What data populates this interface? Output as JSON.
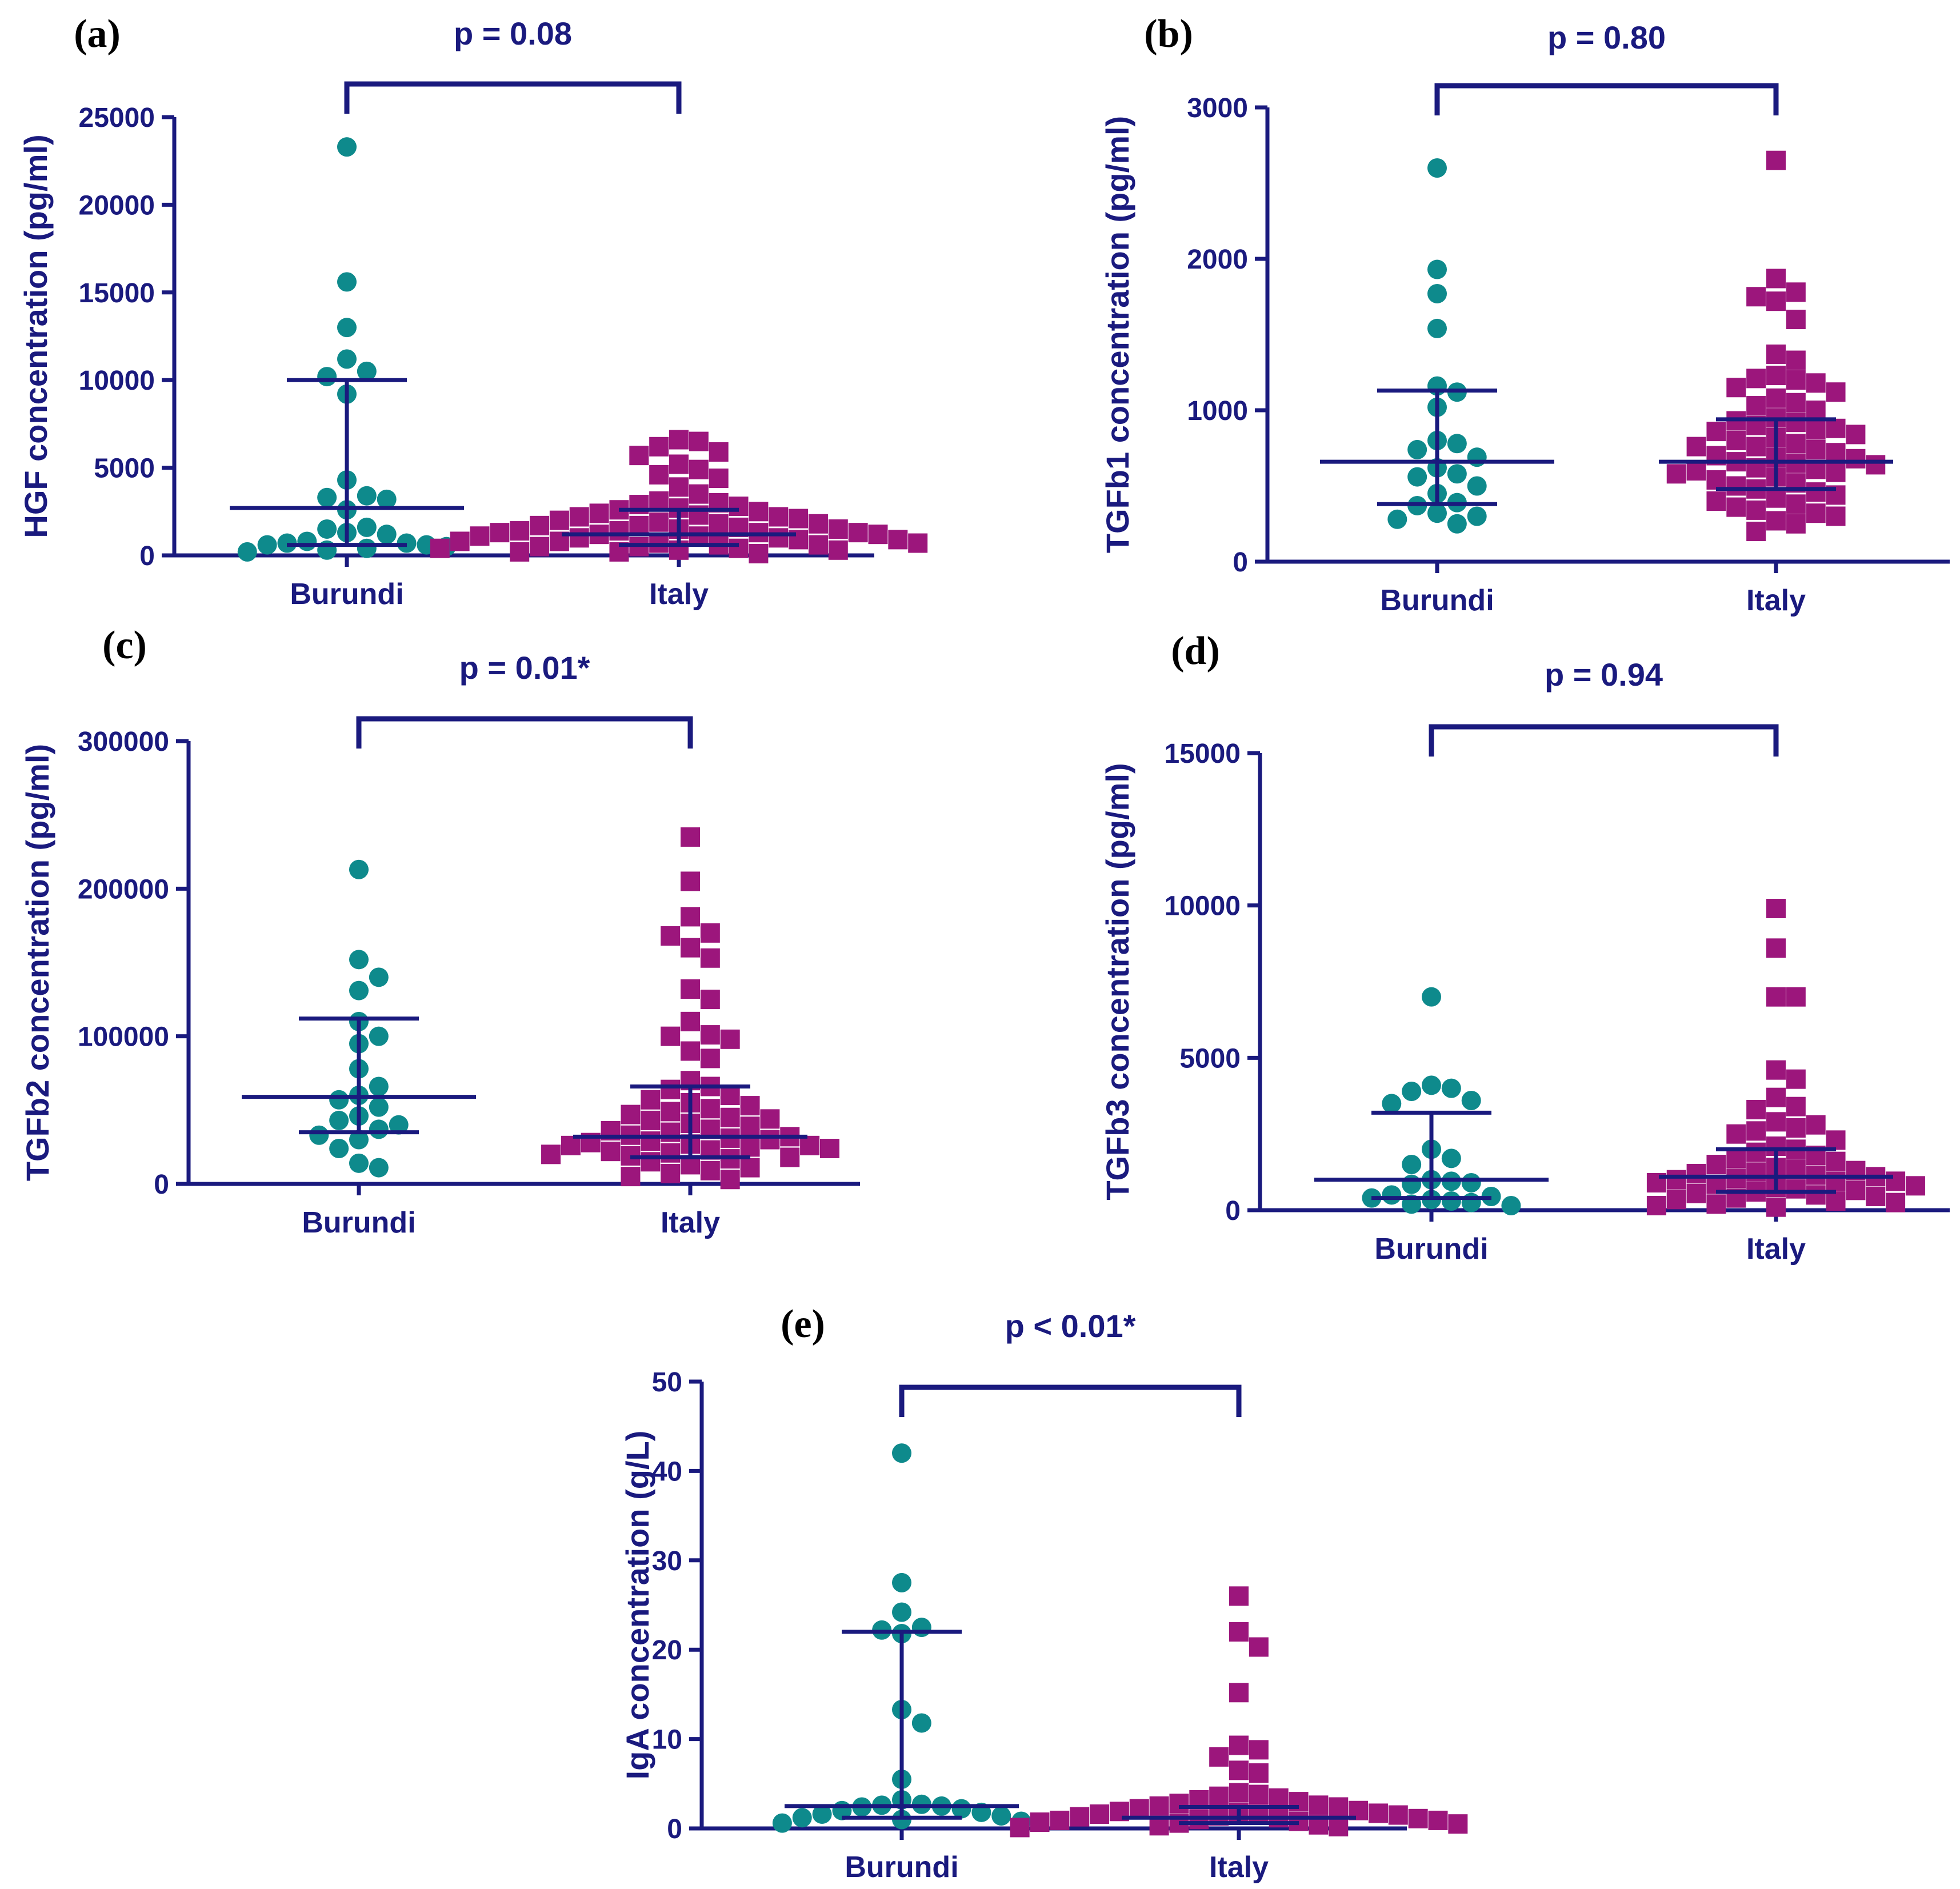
{
  "colors": {
    "axis": "#1a1a7e",
    "burundi": "#0e8a8c",
    "italy": "#9c167c",
    "panel_label": "#000000"
  },
  "chart_data": [
    {
      "id": "a",
      "panel_label": "(a)",
      "type": "scatter",
      "title": "p = 0.08",
      "ylabel": "HGF concentration (pg/ml)",
      "xlabel": "",
      "ylim": [
        0,
        25000
      ],
      "yticks": [
        0,
        5000,
        10000,
        15000,
        20000,
        25000
      ],
      "yticklabels": [
        "0",
        "5000",
        "10000",
        "15000",
        "20000",
        "25000"
      ],
      "categories": [
        "Burundi",
        "Italy"
      ],
      "series": [
        {
          "name": "Burundi",
          "marker": "circle",
          "median": 2700,
          "q1": 600,
          "q3": 10000,
          "values": [
            23300,
            15600,
            13000,
            11200,
            10500,
            10200,
            9200,
            4300,
            3400,
            3300,
            3200,
            2600,
            1600,
            1500,
            1300,
            1200,
            800,
            700,
            600,
            500,
            400,
            300,
            200,
            600,
            700
          ]
        },
        {
          "name": "Italy",
          "marker": "square",
          "median": 1200,
          "q1": 600,
          "q3": 2600,
          "values": [
            6600,
            6500,
            6200,
            5900,
            5700,
            5200,
            4900,
            4600,
            4400,
            3900,
            3500,
            3100,
            3000,
            2900,
            2800,
            2700,
            2600,
            2500,
            2400,
            2300,
            2200,
            2100,
            2000,
            1900,
            1800,
            1700,
            1700,
            1600,
            1500,
            1500,
            1400,
            1400,
            1300,
            1300,
            1200,
            1200,
            1100,
            1100,
            1000,
            1000,
            900,
            900,
            800,
            800,
            700,
            700,
            600,
            600,
            500,
            500,
            400,
            400,
            300,
            300,
            200,
            200,
            100,
            1800,
            2200,
            1300
          ]
        }
      ]
    },
    {
      "id": "b",
      "panel_label": "(b)",
      "type": "scatter",
      "title": "p = 0.80",
      "ylabel": "TGFb1 concentration (pg/ml)",
      "xlabel": "",
      "ylim": [
        0,
        3000
      ],
      "yticks": [
        0,
        1000,
        2000,
        3000
      ],
      "yticklabels": [
        "0",
        "1000",
        "2000",
        "3000"
      ],
      "categories": [
        "Burundi",
        "Italy"
      ],
      "series": [
        {
          "name": "Burundi",
          "marker": "circle",
          "median": 660,
          "q1": 380,
          "q3": 1130,
          "values": [
            2600,
            1930,
            1770,
            1540,
            1160,
            1120,
            1020,
            800,
            780,
            740,
            690,
            620,
            580,
            560,
            500,
            450,
            390,
            370,
            320,
            300,
            280,
            250
          ]
        },
        {
          "name": "Italy",
          "marker": "square",
          "median": 660,
          "q1": 480,
          "q3": 940,
          "values": [
            2650,
            1870,
            1780,
            1750,
            1720,
            1600,
            1370,
            1330,
            1230,
            1210,
            1200,
            1180,
            1150,
            1120,
            1080,
            1050,
            1030,
            1000,
            950,
            930,
            920,
            900,
            880,
            860,
            840,
            820,
            800,
            780,
            760,
            740,
            720,
            700,
            690,
            680,
            660,
            650,
            640,
            620,
            600,
            590,
            580,
            560,
            540,
            520,
            500,
            480,
            460,
            440,
            420,
            400,
            380,
            360,
            340,
            320,
            300,
            270,
            250,
            200,
            870,
            760,
            610
          ]
        }
      ]
    },
    {
      "id": "c",
      "panel_label": "(c)",
      "type": "scatter",
      "title": "p = 0.01*",
      "ylabel": "TGFb2 concentration (pg/ml)",
      "xlabel": "",
      "ylim": [
        0,
        300000
      ],
      "yticks": [
        0,
        100000,
        200000,
        300000
      ],
      "yticklabels": [
        "0",
        "100000",
        "200000",
        "300000"
      ],
      "categories": [
        "Burundi",
        "Italy"
      ],
      "series": [
        {
          "name": "Burundi",
          "marker": "circle",
          "median": 59000,
          "q1": 35000,
          "q3": 112000,
          "values": [
            213000,
            152000,
            140000,
            131000,
            110000,
            100000,
            95000,
            78000,
            66000,
            60000,
            57000,
            52000,
            46000,
            43000,
            40000,
            37000,
            33000,
            30000,
            24000,
            14000,
            11000
          ]
        },
        {
          "name": "Italy",
          "marker": "square",
          "median": 32000,
          "q1": 18000,
          "q3": 66000,
          "values": [
            235000,
            205000,
            181000,
            170000,
            168000,
            160000,
            153000,
            132000,
            125000,
            110000,
            101000,
            100000,
            98000,
            90000,
            85000,
            70000,
            66000,
            64000,
            60000,
            57000,
            55000,
            53000,
            51000,
            49000,
            47000,
            45000,
            43000,
            41000,
            39000,
            37000,
            35000,
            33000,
            32000,
            31000,
            30000,
            29000,
            28000,
            27000,
            26000,
            25000,
            24000,
            23000,
            22000,
            21000,
            20000,
            19000,
            18000,
            17000,
            15000,
            13000,
            11000,
            9000,
            7000,
            5000,
            3000,
            44000,
            36000,
            26000
          ]
        }
      ]
    },
    {
      "id": "d",
      "panel_label": "(d)",
      "type": "scatter",
      "title": "p = 0.94",
      "ylabel": "TGFb3 concentration (pg/ml)",
      "xlabel": "",
      "ylim": [
        0,
        15000
      ],
      "yticks": [
        0,
        5000,
        10000,
        15000
      ],
      "yticklabels": [
        "0",
        "5000",
        "10000",
        "15000"
      ],
      "categories": [
        "Burundi",
        "Italy"
      ],
      "series": [
        {
          "name": "Burundi",
          "marker": "circle",
          "median": 1000,
          "q1": 400,
          "q3": 3200,
          "values": [
            7000,
            4100,
            4000,
            3900,
            3600,
            3500,
            2000,
            1700,
            1500,
            1000,
            950,
            900,
            850,
            500,
            450,
            400,
            350,
            300,
            250,
            200,
            150
          ]
        },
        {
          "name": "Italy",
          "marker": "square",
          "median": 1100,
          "q1": 600,
          "q3": 2000,
          "values": [
            9900,
            8600,
            7000,
            7000,
            4600,
            4300,
            3700,
            3400,
            3300,
            2900,
            2800,
            2700,
            2600,
            2500,
            2300,
            2100,
            2000,
            1900,
            1800,
            1700,
            1600,
            1500,
            1400,
            1300,
            1200,
            1150,
            1100,
            1050,
            1000,
            950,
            900,
            850,
            800,
            750,
            700,
            650,
            600,
            550,
            500,
            450,
            400,
            350,
            300,
            250,
            200,
            150,
            100,
            1250,
            1350,
            950
          ]
        }
      ]
    },
    {
      "id": "e",
      "panel_label": "(e)",
      "type": "scatter",
      "title": "p < 0.01*",
      "ylabel": "IgA concentration (g/L)",
      "xlabel": "",
      "ylim": [
        0,
        50
      ],
      "yticks": [
        0,
        10,
        20,
        30,
        40,
        50
      ],
      "yticklabels": [
        "0",
        "10",
        "20",
        "30",
        "40",
        "50"
      ],
      "categories": [
        "Burundi",
        "Italy"
      ],
      "series": [
        {
          "name": "Burundi",
          "marker": "circle",
          "median": 2.5,
          "q1": 1.2,
          "q3": 22,
          "values": [
            42,
            27.5,
            24.2,
            22.5,
            22.2,
            21.8,
            13.3,
            11.8,
            5.5,
            3.2,
            2.7,
            2.6,
            2.5,
            2.4,
            2.2,
            2.0,
            1.8,
            1.6,
            1.4,
            1.2,
            1.0,
            0.8,
            0.6
          ]
        },
        {
          "name": "Italy",
          "marker": "square",
          "median": 1.2,
          "q1": 0.6,
          "q3": 2.4,
          "values": [
            26,
            22,
            20.3,
            15.2,
            9.3,
            8.8,
            8.0,
            6.5,
            6.2,
            4.0,
            3.8,
            3.6,
            3.4,
            3.2,
            3.0,
            2.8,
            2.6,
            2.4,
            2.2,
            2.0,
            1.9,
            1.8,
            1.7,
            1.6,
            1.5,
            1.4,
            1.3,
            1.2,
            1.1,
            1.0,
            0.9,
            0.8,
            0.7,
            0.6,
            0.5,
            0.4,
            0.3,
            0.2,
            0.1,
            2.5,
            1.6,
            0.9
          ]
        }
      ]
    }
  ]
}
